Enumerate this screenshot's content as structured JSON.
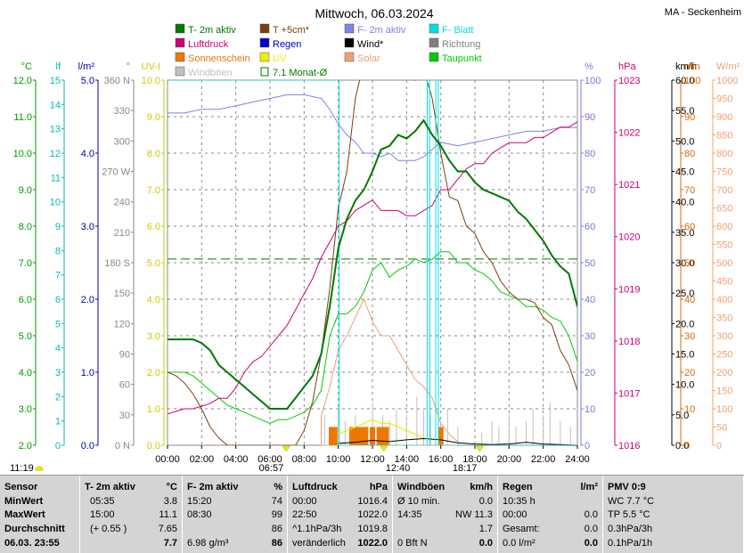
{
  "header": {
    "title": "Mittwoch, 06.03.2024",
    "station": "MA - Seckenheim",
    "time_left": "11:19"
  },
  "legend": [
    {
      "label": "T- 2m aktiv",
      "color": "#007700",
      "style": "box"
    },
    {
      "label": "T +5cm*",
      "color": "#7a3f10",
      "style": "box"
    },
    {
      "label": "F- 2m aktiv",
      "color": "#8080ee",
      "style": "box"
    },
    {
      "label": "F- Blatt",
      "color": "#00e0e0",
      "style": "box"
    },
    {
      "label": "Luftdruck",
      "color": "#cc0077",
      "style": "box"
    },
    {
      "label": "Regen",
      "color": "#0000cc",
      "style": "box"
    },
    {
      "label": "Wind*",
      "color": "#000000",
      "style": "box"
    },
    {
      "label": "Richtung",
      "color": "#808080",
      "style": "box"
    },
    {
      "label": "Sonnenschein",
      "color": "#ee7700",
      "style": "box"
    },
    {
      "label": "UV",
      "color": "#eeee00",
      "style": "box"
    },
    {
      "label": "Solar",
      "color": "#f0a070",
      "style": "box"
    },
    {
      "label": "Taupunkt",
      "color": "#00cc00",
      "style": "box"
    },
    {
      "label": "Windböen",
      "color": "#c0c0c0",
      "style": "box"
    },
    {
      "label": "7.1 Monat-Ø",
      "color": "#007700",
      "style": "open"
    }
  ],
  "axes": {
    "temp": {
      "unit": "°C",
      "color": "#009900",
      "ticks": [
        "2.0",
        "3.0",
        "4.0",
        "5.0",
        "6.0",
        "7.0",
        "8.0",
        "9.0",
        "10.0",
        "11.0",
        "12.0"
      ]
    },
    "hum_leaf": {
      "unit": "lf",
      "color": "#00bbbb",
      "ticks": [
        "0",
        "1",
        "2",
        "3",
        "4",
        "5",
        "6",
        "7",
        "8",
        "9",
        "10",
        "11",
        "12",
        "13",
        "14",
        "15"
      ]
    },
    "rain": {
      "unit": "l/m²",
      "color": "#0000aa",
      "ticks": [
        "0.0",
        "1.0",
        "2.0",
        "3.0",
        "4.0",
        "5.0"
      ]
    },
    "dir": {
      "unit": "°",
      "color": "#888888",
      "ticks": [
        "0 N",
        "30",
        "60",
        "90",
        "120",
        "150",
        "180 S",
        "210",
        "240",
        "270 W",
        "300",
        "330",
        "360 N"
      ]
    },
    "uv": {
      "unit": "UV-I",
      "color": "#cccc00",
      "ticks": [
        "0.0",
        "1.0",
        "2.0",
        "3.0",
        "4.0",
        "5.0",
        "6.0",
        "7.0",
        "8.0",
        "9.0",
        "10.0"
      ]
    },
    "pct": {
      "unit": "%",
      "color": "#7777dd",
      "ticks": [
        "0",
        "10",
        "20",
        "30",
        "40",
        "50",
        "60",
        "70",
        "80",
        "90",
        "100"
      ]
    },
    "hpa": {
      "unit": "hPa",
      "color": "#cc0077",
      "ticks": [
        "1016",
        "1017",
        "1018",
        "1019",
        "1020",
        "1021",
        "1022",
        "1023"
      ]
    },
    "kmh": {
      "unit": "km/h",
      "color": "#000000",
      "ticks": [
        "0.0",
        "5.0",
        "10.0",
        "15.0",
        "20.0",
        "25.0",
        "30.0",
        "35.0",
        "40.0",
        "45.0",
        "50.0",
        "55.0",
        "60.0"
      ]
    },
    "min": {
      "unit": "min",
      "color": "#dd6600",
      "ticks": [
        "0",
        "10",
        "20",
        "30",
        "40",
        "50",
        "60",
        "70",
        "80",
        "90",
        "100"
      ]
    },
    "wm2": {
      "unit": "W/m²",
      "color": "#f0a070",
      "ticks": [
        "0",
        "50",
        "100",
        "150",
        "200",
        "250",
        "300",
        "350",
        "400",
        "450",
        "500",
        "550",
        "600",
        "650",
        "700",
        "750",
        "800",
        "850",
        "900",
        "950",
        "1000"
      ]
    },
    "x": {
      "ticks": [
        "00:00",
        "02:00",
        "04:00",
        "06:00",
        "08:00",
        "10:00",
        "12:00",
        "14:00",
        "16:00",
        "18:00",
        "20:00",
        "22:00",
        "24:00"
      ]
    }
  },
  "sun_markers": {
    "sunrise": "06:57",
    "noon": "12:40",
    "sunset": "18:17"
  },
  "chart_data": {
    "type": "line",
    "x_unit": "hours",
    "xlim": [
      0,
      24
    ],
    "series": [
      {
        "name": "T- 2m aktiv",
        "axis": "temp",
        "color": "#007700",
        "width": 2,
        "x": [
          0,
          0.5,
          1,
          1.5,
          2,
          2.5,
          3,
          3.5,
          4,
          4.5,
          5,
          5.5,
          6,
          6.5,
          7,
          7.5,
          8,
          8.5,
          9,
          9.5,
          10,
          10.5,
          11,
          11.5,
          12,
          12.5,
          13,
          13.5,
          14,
          14.5,
          15,
          15.5,
          16,
          16.5,
          17,
          17.5,
          18,
          18.5,
          19,
          19.5,
          20,
          20.5,
          21,
          21.5,
          22,
          22.5,
          23,
          23.5,
          24
        ],
        "y": [
          4.9,
          4.9,
          4.9,
          4.9,
          4.8,
          4.6,
          4.2,
          4.0,
          3.8,
          3.6,
          3.4,
          3.2,
          3.0,
          3.0,
          3.0,
          3.3,
          3.6,
          3.9,
          4.5,
          5.8,
          7.4,
          8.2,
          8.7,
          9.0,
          9.5,
          10.1,
          10.2,
          10.5,
          10.4,
          10.6,
          10.9,
          10.5,
          10.2,
          9.8,
          9.5,
          9.5,
          9.2,
          9.0,
          8.9,
          8.8,
          8.7,
          8.4,
          8.2,
          7.9,
          7.6,
          7.2,
          6.9,
          6.7,
          5.8
        ]
      },
      {
        "name": "T +5cm*",
        "axis": "temp",
        "color": "#7a3f10",
        "width": 1,
        "x": [
          0,
          0.5,
          1,
          1.5,
          2,
          2.5,
          3,
          3.5,
          4,
          4.5,
          5,
          5.5,
          6,
          6.5,
          7,
          7.5,
          8,
          8.5,
          9,
          9.5,
          10,
          10.5,
          11,
          11.5,
          12,
          12.5,
          13,
          13.5,
          14,
          14.5,
          15,
          15.5,
          16,
          16.5,
          17,
          17.5,
          18,
          18.5,
          19,
          19.5,
          20,
          20.5,
          21,
          21.5,
          22,
          22.5,
          23,
          23.5,
          24
        ],
        "y": [
          4.0,
          3.9,
          3.7,
          3.4,
          3.0,
          2.5,
          2.2,
          2.0,
          2.0,
          2.0,
          2.0,
          2.0,
          2.0,
          2.0,
          2.0,
          2.0,
          2.4,
          3.2,
          4.5,
          6.3,
          8.5,
          9.5,
          11.5,
          12.5,
          13.8,
          15.0,
          14.6,
          13.5,
          12.8,
          12.0,
          12.3,
          11.5,
          10.0,
          8.8,
          8.7,
          8.0,
          7.8,
          7.3,
          7.0,
          6.5,
          6.2,
          6.0,
          6.0,
          5.9,
          5.5,
          5.3,
          4.6,
          4.2,
          3.5
        ]
      },
      {
        "name": "F- 2m aktiv",
        "axis": "pct",
        "color": "#8080ee",
        "width": 1,
        "x": [
          0,
          1,
          2,
          3,
          4,
          5,
          6,
          7,
          8,
          9,
          9.5,
          10,
          10.5,
          11,
          11.5,
          12,
          12.5,
          13,
          13.5,
          14,
          14.5,
          15,
          15.5,
          16,
          17,
          18,
          19,
          20,
          21,
          22,
          23,
          24
        ],
        "y": [
          91,
          91,
          92,
          92,
          93,
          94,
          95,
          96,
          96,
          95,
          92,
          88,
          85,
          83,
          80,
          80,
          79,
          80,
          78,
          78,
          78,
          79,
          81,
          83,
          82,
          83,
          84,
          85,
          86,
          86,
          87,
          87
        ]
      },
      {
        "name": "Luftdruck",
        "axis": "hpa",
        "color": "#cc0077",
        "width": 1,
        "x": [
          0,
          0.5,
          1,
          1.5,
          2,
          2.5,
          3,
          3.5,
          4,
          4.5,
          5,
          5.5,
          6,
          6.5,
          7,
          7.5,
          8,
          8.5,
          9,
          9.5,
          10,
          10.5,
          11,
          11.5,
          12,
          12.5,
          13,
          13.5,
          14,
          14.5,
          15,
          15.5,
          16,
          16.5,
          17,
          17.5,
          18,
          18.5,
          19,
          19.5,
          20,
          20.5,
          21,
          21.5,
          22,
          22.5,
          23,
          23.5,
          24
        ],
        "y": [
          1016.6,
          1016.65,
          1016.7,
          1016.7,
          1016.75,
          1016.8,
          1016.9,
          1016.9,
          1017.1,
          1017.4,
          1017.6,
          1017.7,
          1017.9,
          1018.1,
          1018.3,
          1018.6,
          1018.9,
          1019.2,
          1019.6,
          1019.9,
          1020.2,
          1020.3,
          1020.5,
          1020.6,
          1020.7,
          1020.5,
          1020.5,
          1020.5,
          1020.4,
          1020.4,
          1020.5,
          1020.6,
          1020.9,
          1020.9,
          1021.1,
          1021.3,
          1021.4,
          1021.4,
          1021.6,
          1021.7,
          1021.8,
          1021.8,
          1021.8,
          1021.9,
          1021.9,
          1022.0,
          1022.1,
          1022.1,
          1022.2
        ]
      },
      {
        "name": "Taupunkt",
        "axis": "temp",
        "color": "#00cc00",
        "width": 1,
        "x": [
          0,
          0.5,
          1,
          1.5,
          2,
          2.5,
          3,
          3.5,
          4,
          4.5,
          5,
          5.5,
          6,
          6.5,
          7,
          7.5,
          8,
          8.5,
          9,
          9.5,
          10,
          10.5,
          11,
          11.5,
          12,
          12.5,
          13,
          13.5,
          14,
          14.5,
          15,
          15.5,
          16,
          16.5,
          17,
          17.5,
          18,
          18.5,
          19,
          19.5,
          20,
          20.5,
          21,
          21.5,
          22,
          22.5,
          23,
          23.5,
          24
        ],
        "y": [
          4.0,
          4.0,
          4.0,
          3.9,
          3.7,
          3.5,
          3.3,
          3.1,
          3.0,
          2.9,
          2.8,
          2.7,
          2.6,
          2.7,
          2.7,
          2.8,
          2.9,
          3.1,
          3.5,
          5.0,
          5.6,
          5.6,
          5.8,
          6.2,
          6.8,
          7.0,
          6.6,
          6.8,
          6.9,
          7.1,
          7.0,
          7.1,
          7.3,
          7.3,
          7.0,
          7.0,
          6.8,
          6.7,
          6.5,
          6.2,
          6.1,
          6.0,
          5.8,
          5.8,
          5.7,
          5.5,
          5.4,
          5.0,
          4.3
        ]
      },
      {
        "name": "F- Blatt",
        "axis": "hum_leaf",
        "color": "#00e0e0",
        "width": 1,
        "x": [
          0,
          9.95,
          9.96,
          10.05,
          10.06,
          15.2,
          15.21,
          15.35,
          15.36,
          15.7,
          15.71,
          15.85,
          15.86,
          24
        ],
        "y": [
          15,
          15,
          15,
          15,
          0,
          0,
          15,
          15,
          0,
          0,
          15,
          15,
          0,
          0
        ]
      },
      {
        "name": "7.1 Monat-Ø",
        "axis": "temp",
        "color": "#007700",
        "width": 1,
        "dash": "10,5",
        "x": [
          0,
          24
        ],
        "y": [
          7.1,
          7.1
        ]
      }
    ],
    "sunshine_minutes": [
      {
        "x": 9.6,
        "v": 5
      },
      {
        "x": 9.8,
        "v": 5
      },
      {
        "x": 10.8,
        "v": 5
      },
      {
        "x": 11.0,
        "v": 5
      },
      {
        "x": 11.2,
        "v": 5
      },
      {
        "x": 11.4,
        "v": 5
      },
      {
        "x": 11.6,
        "v": 5
      },
      {
        "x": 12.0,
        "v": 5
      },
      {
        "x": 12.4,
        "v": 5
      },
      {
        "x": 12.6,
        "v": 5
      },
      {
        "x": 12.8,
        "v": 5
      },
      {
        "x": 16.0,
        "v": 5
      }
    ],
    "solar": {
      "axis": "wm2",
      "color": "#f0a070",
      "x": [
        9,
        9.5,
        10,
        10.5,
        11,
        11.5,
        12,
        12.5,
        13,
        13.5,
        14,
        14.5,
        15,
        15.5,
        16,
        16.5,
        17
      ],
      "y": [
        80,
        160,
        260,
        300,
        350,
        400,
        340,
        300,
        300,
        260,
        220,
        180,
        160,
        130,
        60,
        30,
        10
      ]
    },
    "wind_gusts": {
      "axis": "kmh",
      "color": "#c0c0c0",
      "x": [
        9.2,
        9.6,
        10,
        10.4,
        11,
        11.4,
        12,
        12.6,
        13,
        13.4,
        14,
        14.6,
        15,
        15.4,
        16,
        16.4,
        17,
        18.4,
        19,
        19.4,
        20,
        20.4,
        21,
        21.4,
        22,
        22.4,
        23,
        23.6
      ],
      "y": [
        5,
        3,
        6,
        4,
        5,
        3,
        7,
        5,
        4,
        6,
        5,
        8,
        6,
        5,
        4,
        6,
        3,
        2,
        4,
        3,
        5,
        3,
        4,
        6,
        5,
        7,
        4,
        3
      ]
    },
    "wind": {
      "axis": "kmh",
      "color": "#000000",
      "x": [
        10,
        11,
        12,
        13,
        14,
        15,
        16,
        17,
        18,
        19,
        20,
        21,
        22,
        23,
        24
      ],
      "y": [
        0.3,
        0.5,
        0.8,
        0.6,
        0.9,
        1.1,
        0.9,
        0.4,
        0.2,
        0.1,
        0.2,
        0.5,
        0.2,
        0.1,
        0
      ]
    },
    "uv_series": {
      "axis": "uv",
      "color": "#eeee00",
      "x": [
        10,
        10.5,
        11,
        11.5,
        12,
        12.5,
        13,
        13.5,
        14,
        14.5,
        15
      ],
      "y": [
        0.3,
        0.4,
        0.5,
        0.6,
        0.7,
        0.6,
        0.6,
        0.5,
        0.4,
        0.3,
        0.2
      ]
    }
  },
  "footer": {
    "sensor": {
      "title": "Sensor",
      "rows": [
        "MinWert",
        "MaxWert",
        "Durchschnitt",
        "06.03. 23:55"
      ]
    },
    "temp": {
      "title": "T- 2m aktiv",
      "unit": "°C",
      "rows": [
        [
          "05:35",
          "3.8"
        ],
        [
          "15:00",
          "11.1"
        ],
        [
          "(+ 0.55 )",
          "7.65"
        ],
        [
          "",
          "7.7"
        ]
      ]
    },
    "hum": {
      "title": "F- 2m aktiv",
      "unit": "%",
      "rows": [
        [
          "15:20",
          "74"
        ],
        [
          "08:30",
          "99"
        ],
        [
          "",
          "86"
        ],
        [
          "6.98 g/m³",
          "86"
        ]
      ]
    },
    "press": {
      "title": "Luftdruck",
      "unit": "hPa",
      "rows": [
        [
          "00:00",
          "1016.4"
        ],
        [
          "22:50",
          "1022.0"
        ],
        [
          "^1.1hPa/3h",
          "1019.8"
        ],
        [
          "veränderlich",
          "1022.0"
        ]
      ]
    },
    "wind": {
      "title": "Windböen",
      "unit": "km/h",
      "rows": [
        [
          "Ø 10 min.",
          "0.0"
        ],
        [
          "14:35",
          "NW 11.3"
        ],
        [
          "",
          "1.7"
        ],
        [
          "0 Bft N",
          "0.0"
        ]
      ]
    },
    "rain": {
      "title": "Regen",
      "unit": "l/m²",
      "rows": [
        [
          "10:35 h",
          ""
        ],
        [
          "00:00",
          "0.0"
        ],
        [
          "Gesamt:",
          "0.0"
        ],
        [
          "0.0 l/m²",
          "0.0"
        ]
      ]
    },
    "pmv": {
      "title": "PMV 0:9",
      "rows": [
        "WC 7.7 °C",
        "TP 5.5 °C",
        "0.3hPa/3h",
        "0.1hPa/1h"
      ]
    }
  }
}
